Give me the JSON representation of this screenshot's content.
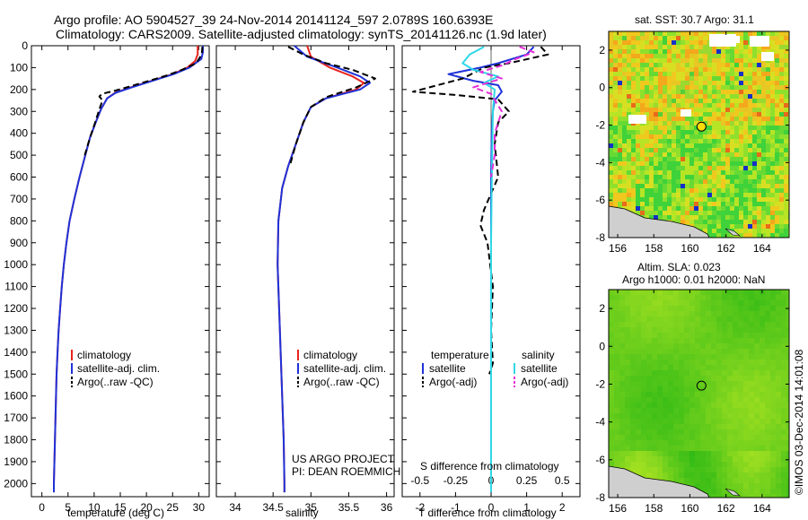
{
  "header": {
    "line1": "Argo profile: AO 5904527_39 24-Nov-2014 20141124_597 2.0789S 160.6393E",
    "line2": "Climatology: CARS2009. Satellite-adjusted climatology: synTS_20141126.nc (1.9d later)"
  },
  "credit": {
    "line1": "US ARGO PROJECT",
    "line2": "PI: DEAN ROEMMICH"
  },
  "side_stamp": "©IMOS 03-Dec-2014 14:01:08",
  "colors": {
    "climatology": "#e8231d",
    "satellite": "#1f32d8",
    "argo": "#000000",
    "sat_sal": "#2fd8e6",
    "argo_sal": "#e62fd8",
    "circle": "#ffdd00"
  },
  "chart_data": [
    {
      "type": "line",
      "xlabel": "temperature (deg C)",
      "ylabel": "",
      "xlim": [
        -2,
        32
      ],
      "ylim": [
        0,
        2060
      ],
      "y_reversed": true,
      "xticks": [
        0,
        5,
        10,
        15,
        20,
        25,
        30
      ],
      "yticks": [
        0,
        100,
        200,
        300,
        400,
        500,
        600,
        700,
        800,
        900,
        1000,
        1100,
        1200,
        1300,
        1400,
        1500,
        1600,
        1700,
        1800,
        1900,
        2000
      ],
      "legend": [
        "climatology",
        "satellite-adj. clim.",
        "Argo(..raw -QC)"
      ],
      "series": [
        {
          "name": "climatology",
          "style": "solid",
          "color": "#e8231d",
          "points": [
            [
              29.8,
              0
            ],
            [
              29.8,
              40
            ],
            [
              29.3,
              70
            ],
            [
              27.8,
              100
            ],
            [
              25,
              130
            ],
            [
              21,
              160
            ],
            [
              17,
              190
            ],
            [
              14,
              215
            ],
            [
              12.5,
              240
            ],
            [
              11.3,
              290
            ],
            [
              10.3,
              350
            ],
            [
              9.2,
              420
            ],
            [
              8.3,
              500
            ],
            [
              7.2,
              600
            ],
            [
              6.2,
              700
            ],
            [
              5.3,
              800
            ],
            [
              4.7,
              900
            ],
            [
              4.2,
              1000
            ],
            [
              3.8,
              1100
            ],
            [
              3.5,
              1200
            ],
            [
              3.2,
              1300
            ],
            [
              3,
              1400
            ],
            [
              2.8,
              1500
            ],
            [
              2.7,
              1600
            ],
            [
              2.6,
              1700
            ],
            [
              2.5,
              1800
            ],
            [
              2.4,
              1900
            ],
            [
              2.3,
              2000
            ],
            [
              2.3,
              2040
            ]
          ]
        },
        {
          "name": "satellite-adj. clim.",
          "style": "solid",
          "color": "#1f32d8",
          "points": [
            [
              30.8,
              0
            ],
            [
              30.8,
              30
            ],
            [
              30.5,
              60
            ],
            [
              28.2,
              100
            ],
            [
              25.2,
              130
            ],
            [
              21.2,
              160
            ],
            [
              17.2,
              190
            ],
            [
              14.1,
              215
            ],
            [
              12.5,
              240
            ],
            [
              11.3,
              290
            ],
            [
              10.3,
              350
            ],
            [
              9.2,
              420
            ],
            [
              8.3,
              500
            ],
            [
              7.2,
              600
            ],
            [
              6.2,
              700
            ],
            [
              5.3,
              800
            ],
            [
              4.7,
              900
            ],
            [
              4.2,
              1000
            ],
            [
              3.8,
              1100
            ],
            [
              3.5,
              1200
            ],
            [
              3.2,
              1300
            ],
            [
              3,
              1400
            ],
            [
              2.8,
              1500
            ],
            [
              2.7,
              1600
            ],
            [
              2.6,
              1700
            ],
            [
              2.5,
              1800
            ],
            [
              2.4,
              1900
            ],
            [
              2.3,
              2000
            ],
            [
              2.3,
              2040
            ]
          ]
        },
        {
          "name": "Argo(..raw -QC)",
          "style": "dashed",
          "color": "#000000",
          "points": [
            [
              30.7,
              5
            ],
            [
              30.6,
              40
            ],
            [
              29.5,
              80
            ],
            [
              26.8,
              110
            ],
            [
              24,
              135
            ],
            [
              20.5,
              160
            ],
            [
              17,
              185
            ],
            [
              14,
              205
            ],
            [
              11.5,
              220
            ],
            [
              11,
              232
            ],
            [
              11.6,
              250
            ],
            [
              11,
              290
            ],
            [
              10.2,
              350
            ],
            [
              9.2,
              420
            ],
            [
              8.2,
              500
            ]
          ]
        }
      ]
    },
    {
      "type": "line",
      "xlabel": "salinity",
      "ylabel": "",
      "xlim": [
        33.75,
        36.1
      ],
      "ylim": [
        0,
        2060
      ],
      "y_reversed": true,
      "xticks": [
        34,
        34.5,
        35,
        35.5,
        36
      ],
      "legend": [
        "climatology",
        "satellite-adj. clim.",
        "Argo(..raw -QC)"
      ],
      "series": [
        {
          "name": "climatology",
          "style": "solid",
          "color": "#e8231d",
          "points": [
            [
              34.95,
              0
            ],
            [
              35.0,
              50
            ],
            [
              35.25,
              100
            ],
            [
              35.55,
              140
            ],
            [
              35.7,
              170
            ],
            [
              35.6,
              200
            ],
            [
              35.2,
              240
            ],
            [
              35.0,
              280
            ],
            [
              34.9,
              350
            ],
            [
              34.8,
              450
            ],
            [
              34.7,
              550
            ],
            [
              34.62,
              650
            ],
            [
              34.57,
              800
            ],
            [
              34.56,
              1000
            ],
            [
              34.58,
              1200
            ],
            [
              34.6,
              1400
            ],
            [
              34.62,
              1600
            ],
            [
              34.64,
              1800
            ],
            [
              34.65,
              2000
            ],
            [
              34.65,
              2040
            ]
          ]
        },
        {
          "name": "satellite-adj. clim.",
          "style": "solid",
          "color": "#1f32d8",
          "points": [
            [
              34.78,
              0
            ],
            [
              34.95,
              50
            ],
            [
              35.35,
              100
            ],
            [
              35.65,
              140
            ],
            [
              35.78,
              170
            ],
            [
              35.65,
              200
            ],
            [
              35.2,
              240
            ],
            [
              35.0,
              280
            ],
            [
              34.9,
              350
            ],
            [
              34.8,
              450
            ],
            [
              34.7,
              550
            ],
            [
              34.62,
              650
            ],
            [
              34.57,
              800
            ],
            [
              34.56,
              1000
            ],
            [
              34.58,
              1200
            ],
            [
              34.6,
              1400
            ],
            [
              34.62,
              1600
            ],
            [
              34.64,
              1800
            ],
            [
              34.65,
              2000
            ],
            [
              34.65,
              2040
            ]
          ]
        },
        {
          "name": "Argo(..raw -QC)",
          "style": "dashed",
          "color": "#000000",
          "points": [
            [
              34.7,
              5
            ],
            [
              34.9,
              40
            ],
            [
              35.2,
              80
            ],
            [
              35.55,
              110
            ],
            [
              35.85,
              150
            ],
            [
              35.6,
              190
            ],
            [
              35.2,
              235
            ],
            [
              35.0,
              280
            ],
            [
              34.9,
              350
            ],
            [
              34.8,
              450
            ],
            [
              34.72,
              550
            ]
          ]
        }
      ]
    },
    {
      "type": "line",
      "xlabel": "T difference from climatology",
      "top_xlabel": "S difference from climatology",
      "ylabel": "",
      "xlim": [
        -2.5,
        2.5
      ],
      "ylim": [
        0,
        2060
      ],
      "y_reversed": true,
      "xticks": [
        -2,
        -1,
        0,
        1,
        2
      ],
      "top_ticks": [
        "-0.5",
        "-0.25",
        "0",
        "0.25",
        "0.5"
      ],
      "legend": [
        "temperature",
        "satellite",
        "Argo(-adj)",
        "salinity",
        "satellite",
        "Argo(-adj)"
      ],
      "series": [
        {
          "name": "temperature satellite",
          "style": "solid",
          "color": "#1f32d8",
          "points": [
            [
              1.2,
              5
            ],
            [
              1.0,
              40
            ],
            [
              0.2,
              80
            ],
            [
              -0.3,
              100
            ],
            [
              -1.2,
              130
            ],
            [
              -0.5,
              160
            ],
            [
              0.2,
              180
            ],
            [
              0.3,
              210
            ],
            [
              0.1,
              250
            ],
            [
              0.05,
              300
            ],
            [
              0.02,
              400
            ],
            [
              0,
              600
            ],
            [
              0,
              800
            ],
            [
              0,
              1000
            ],
            [
              0,
              1400
            ],
            [
              0,
              2040
            ]
          ]
        },
        {
          "name": "temperature Argo(-adj)",
          "style": "dashed",
          "color": "#000000",
          "points": [
            [
              1.4,
              5
            ],
            [
              1.6,
              40
            ],
            [
              0.5,
              80
            ],
            [
              -0.2,
              100
            ],
            [
              -0.8,
              150
            ],
            [
              -2.2,
              210
            ],
            [
              -1.0,
              225
            ],
            [
              0.2,
              245
            ],
            [
              0.5,
              300
            ],
            [
              0.2,
              350
            ],
            [
              0.1,
              450
            ],
            [
              0.2,
              600
            ],
            [
              -0.2,
              750
            ],
            [
              -0.3,
              820
            ],
            [
              -0.1,
              900
            ],
            [
              0.05,
              1100
            ],
            [
              0.0,
              1300
            ],
            [
              0.05,
              1450
            ],
            [
              -0.05,
              1500
            ]
          ]
        },
        {
          "name": "salinity satellite",
          "style": "solid",
          "color": "#2fd8e6",
          "points": [
            [
              -0.2,
              5
            ],
            [
              -0.6,
              40
            ],
            [
              -0.8,
              80
            ],
            [
              -0.5,
              110
            ],
            [
              0.2,
              140
            ],
            [
              -0.2,
              170
            ],
            [
              0.1,
              200
            ],
            [
              0.05,
              300
            ],
            [
              0.02,
              600
            ],
            [
              0,
              900
            ],
            [
              0,
              1400
            ],
            [
              0,
              2040
            ]
          ]
        },
        {
          "name": "salinity Argo(-adj)",
          "style": "dashed",
          "color": "#e62fd8",
          "points": [
            [
              0.8,
              5
            ],
            [
              1.2,
              30
            ],
            [
              0.7,
              60
            ],
            [
              0.3,
              90
            ],
            [
              -0.3,
              120
            ],
            [
              0.3,
              150
            ],
            [
              -0.5,
              190
            ],
            [
              0.0,
              220
            ],
            [
              0.3,
              300
            ],
            [
              0.1,
              400
            ],
            [
              0.1,
              500
            ],
            [
              0,
              600
            ]
          ]
        }
      ]
    },
    {
      "type": "heatmap",
      "title": "sat. SST: 30.7  Argo: 31.1",
      "xlim": [
        155.5,
        165.5
      ],
      "ylim": [
        -8,
        3
      ],
      "xticks": [
        156,
        158,
        160,
        162,
        164
      ],
      "yticks": [
        -8,
        -6,
        -4,
        -2,
        0,
        2
      ],
      "marker": {
        "x": 160.64,
        "y": -2.08
      }
    },
    {
      "type": "heatmap",
      "title": "Altim. SLA: 0.023",
      "subtitle": "Argo h1000: 0.01 h2000: NaN",
      "xlim": [
        155.5,
        165.5
      ],
      "ylim": [
        -8,
        3
      ],
      "xticks": [
        156,
        158,
        160,
        162,
        164
      ],
      "yticks": [
        -8,
        -6,
        -4,
        -2,
        0,
        2
      ],
      "marker": {
        "x": 160.64,
        "y": -2.08
      }
    }
  ]
}
